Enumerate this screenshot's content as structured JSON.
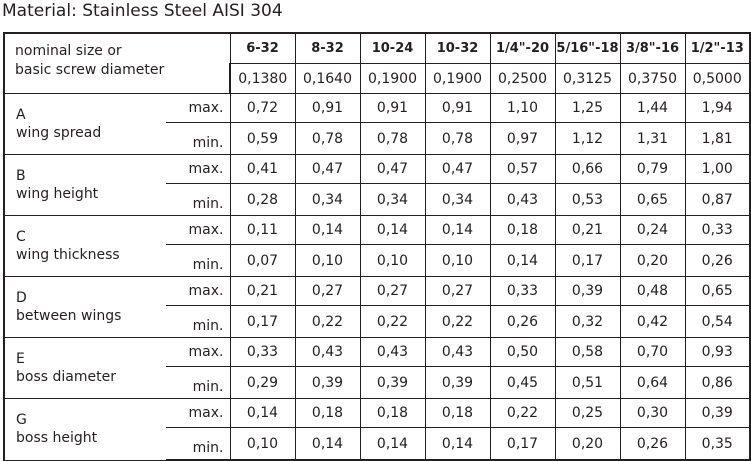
{
  "material": "Material: Stainless Steel AISI 304",
  "header": {
    "label_line1": "nominal size or",
    "label_line2": "basic screw diameter",
    "sizes": [
      "6-32",
      "8-32",
      "10-24",
      "10-32",
      "1/4\"-20",
      "5/16\"-18",
      "3/8\"-16",
      "1/2\"-13"
    ],
    "diameters": [
      "0,1380",
      "0,1640",
      "0,1900",
      "0,1900",
      "0,2500",
      "0,3125",
      "0,3750",
      "0,5000"
    ]
  },
  "limits": {
    "max": "max.",
    "min": "min."
  },
  "dimensions": [
    {
      "letter": "A",
      "name": "wing spread",
      "max": [
        "0,72",
        "0,91",
        "0,91",
        "0,91",
        "1,10",
        "1,25",
        "1,44",
        "1,94"
      ],
      "min": [
        "0,59",
        "0,78",
        "0,78",
        "0,78",
        "0,97",
        "1,12",
        "1,31",
        "1,81"
      ]
    },
    {
      "letter": "B",
      "name": "wing height",
      "max": [
        "0,41",
        "0,47",
        "0,47",
        "0,47",
        "0,57",
        "0,66",
        "0,79",
        "1,00"
      ],
      "min": [
        "0,28",
        "0,34",
        "0,34",
        "0,34",
        "0,43",
        "0,53",
        "0,65",
        "0,87"
      ]
    },
    {
      "letter": "C",
      "name": "wing thickness",
      "max": [
        "0,11",
        "0,14",
        "0,14",
        "0,14",
        "0,18",
        "0,21",
        "0,24",
        "0,33"
      ],
      "min": [
        "0,07",
        "0,10",
        "0,10",
        "0,10",
        "0,14",
        "0,17",
        "0,20",
        "0,26"
      ]
    },
    {
      "letter": "D",
      "name": "between wings",
      "max": [
        "0,21",
        "0,27",
        "0,27",
        "0,27",
        "0,33",
        "0,39",
        "0,48",
        "0,65"
      ],
      "min": [
        "0,17",
        "0,22",
        "0,22",
        "0,22",
        "0,26",
        "0,32",
        "0,42",
        "0,54"
      ]
    },
    {
      "letter": "E",
      "name": "boss diameter",
      "max": [
        "0,33",
        "0,43",
        "0,43",
        "0,43",
        "0,50",
        "0,58",
        "0,70",
        "0,93"
      ],
      "min": [
        "0,29",
        "0,39",
        "0,39",
        "0,39",
        "0,45",
        "0,51",
        "0,64",
        "0,86"
      ]
    },
    {
      "letter": "G",
      "name": "boss height",
      "max": [
        "0,14",
        "0,18",
        "0,18",
        "0,18",
        "0,22",
        "0,25",
        "0,30",
        "0,39"
      ],
      "min": [
        "0,10",
        "0,14",
        "0,14",
        "0,14",
        "0,17",
        "0,20",
        "0,26",
        "0,35"
      ]
    }
  ]
}
